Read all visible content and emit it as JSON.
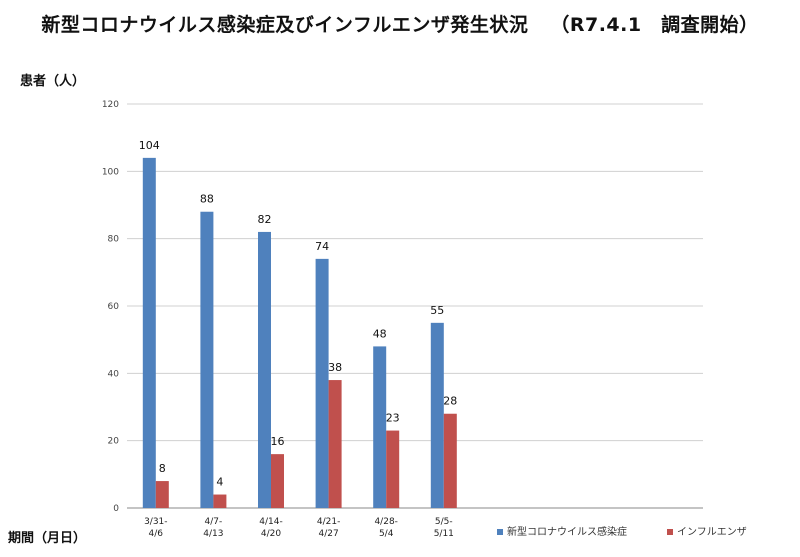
{
  "title": "新型コロナウイルス感染症及びインフルエンザ発生状況",
  "subtitle": "（R7.4.1　調査開始）",
  "chart_data": {
    "type": "bar",
    "ylabel": "患者（人）",
    "xlabel": "期間（月日）",
    "ylim": [
      0,
      120
    ],
    "yticks": [
      0,
      20,
      40,
      60,
      80,
      100,
      120
    ],
    "grid": true,
    "legend": "bottom-right",
    "categories": [
      [
        "3/31-",
        "4/6"
      ],
      [
        "4/7-",
        "4/13"
      ],
      [
        "4/14-",
        "4/20"
      ],
      [
        "4/21-",
        "4/27"
      ],
      [
        "4/28-",
        "5/4"
      ],
      [
        "5/5-",
        "5/11"
      ]
    ],
    "total_slots": 10,
    "series": [
      {
        "name": "新型コロナウイルス感染症",
        "color": "#4F81BD",
        "values": [
          104,
          88,
          82,
          74,
          48,
          55
        ]
      },
      {
        "name": "インフルエンザ",
        "color": "#C0504D",
        "values": [
          8,
          4,
          16,
          38,
          23,
          28
        ]
      }
    ]
  }
}
